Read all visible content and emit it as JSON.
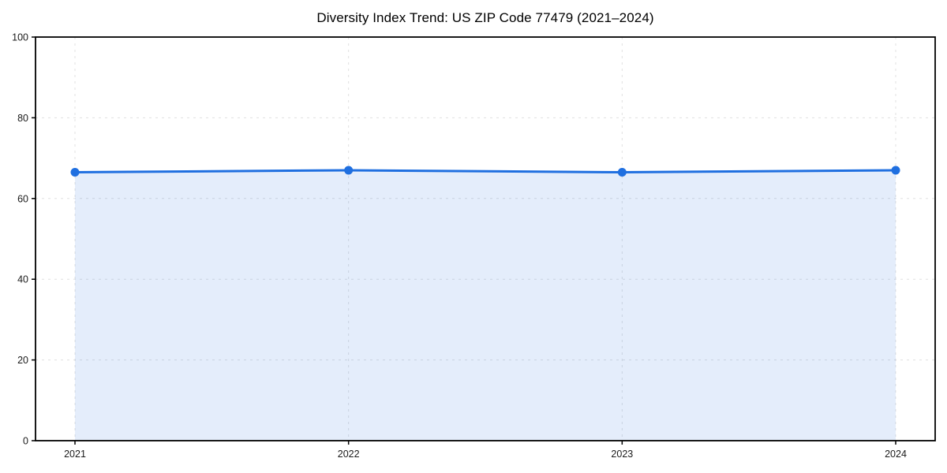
{
  "chart_data": {
    "type": "area",
    "title": "Diversity Index Trend: US ZIP Code 77479 (2021–2024)",
    "x": [
      2021,
      2022,
      2023,
      2024
    ],
    "series": [
      {
        "name": "Diversity Index",
        "values": [
          66.5,
          67.0,
          66.5,
          67.0
        ]
      }
    ],
    "xlabel": "",
    "ylabel": "",
    "ylim": [
      0,
      100
    ],
    "yticks": [
      0,
      20,
      40,
      60,
      80,
      100
    ],
    "xtick_labels": [
      "2021",
      "2022",
      "2023",
      "2024"
    ],
    "grid": "dashed, horizontal and vertical",
    "legend_position": "none",
    "colors": {
      "line": "#1f6fe0",
      "marker": "#1f6fe0",
      "fill": "#1f6fe0",
      "fill_opacity": 0.12,
      "gridline": "#e0e0e0",
      "spine": "#000000",
      "tick_text": "#1a1a1a",
      "title_text": "#000000",
      "background": "#ffffff"
    }
  }
}
